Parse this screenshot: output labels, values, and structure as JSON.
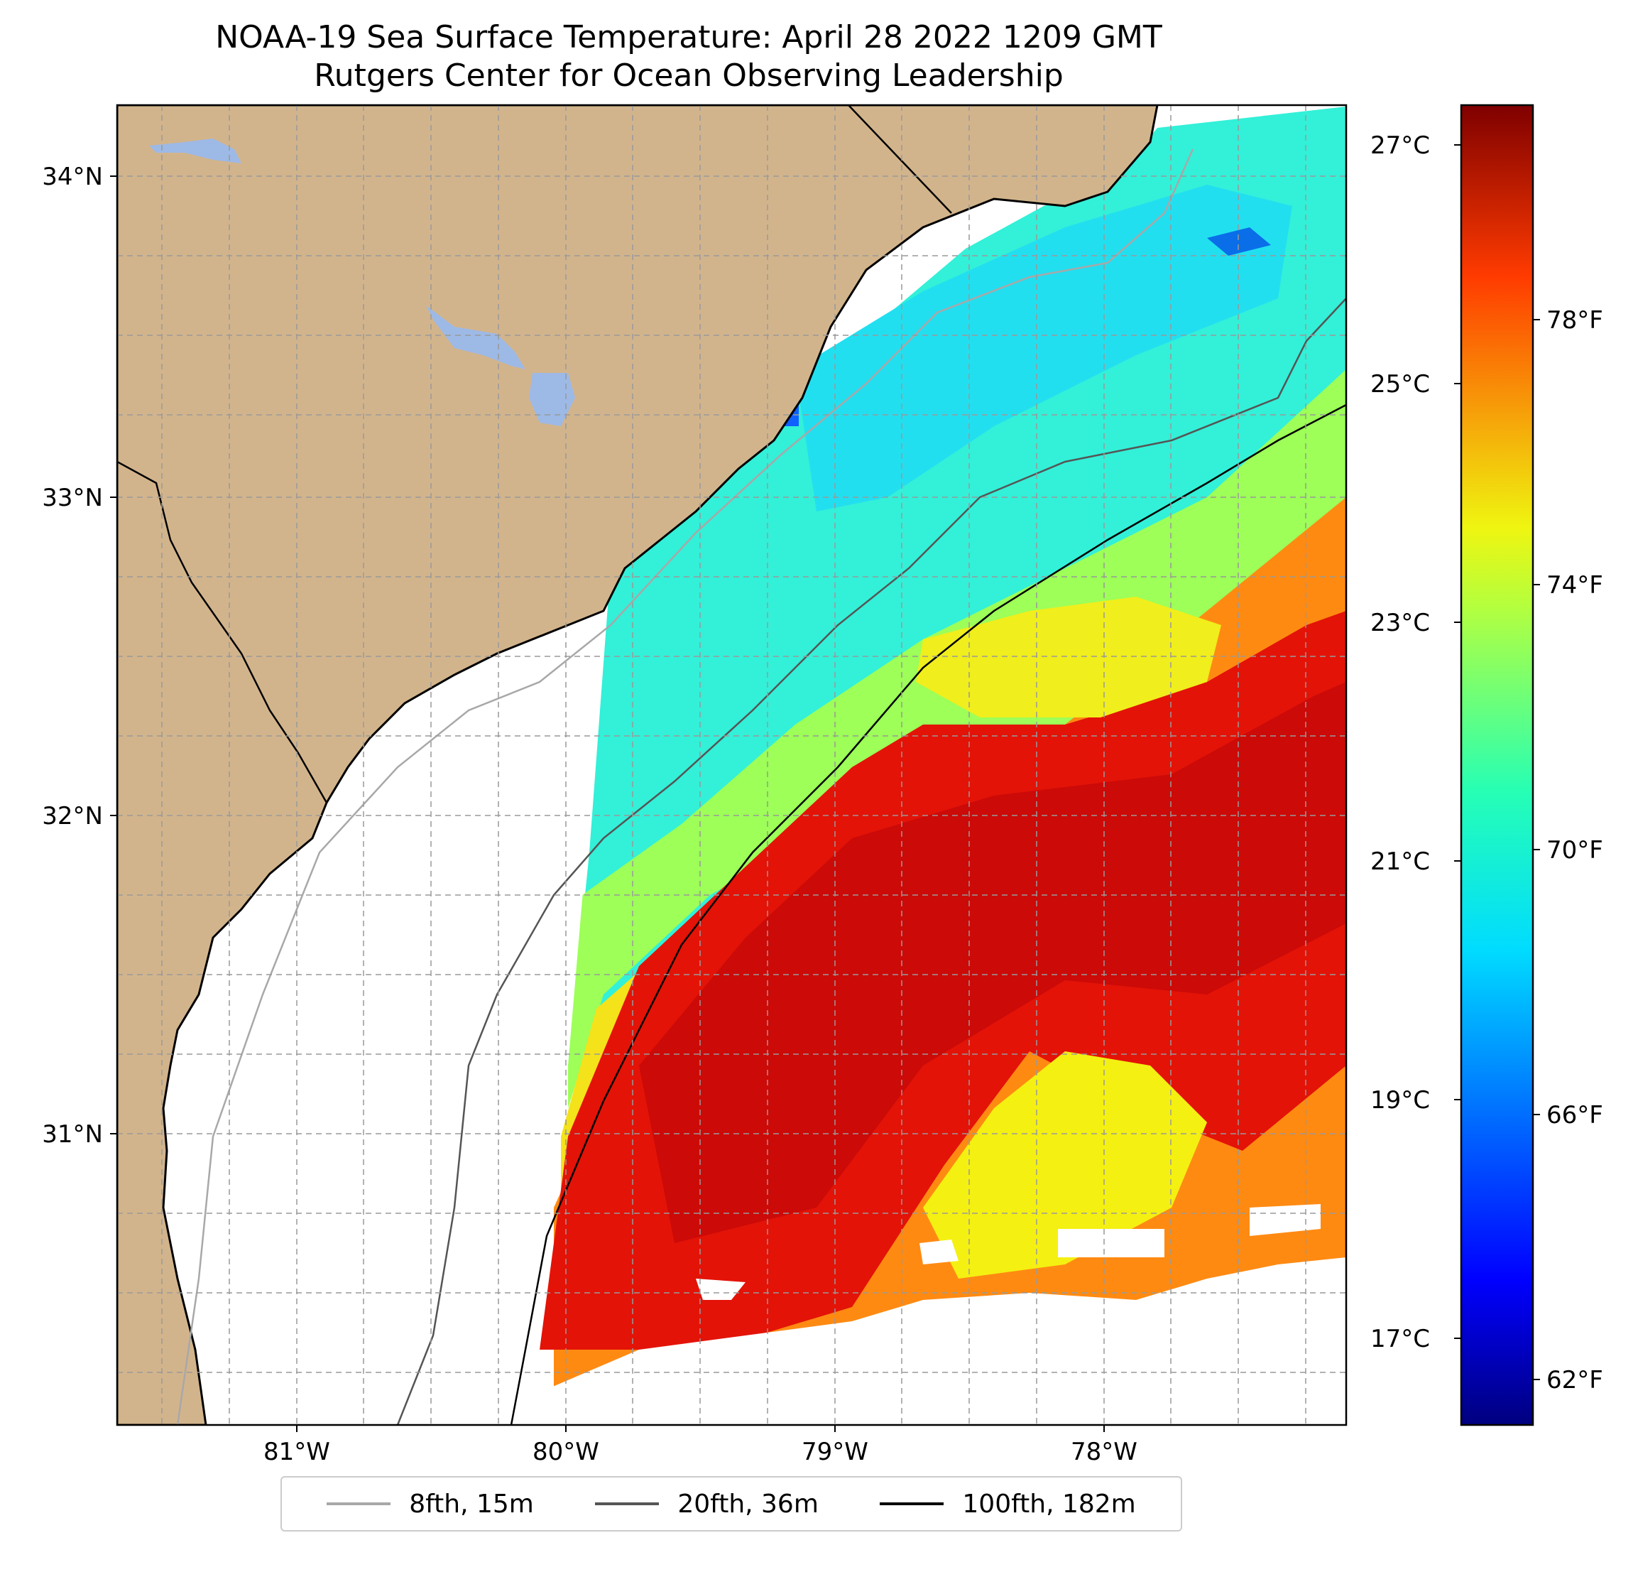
{
  "title": {
    "line1": "NOAA-19 Sea Surface Temperature: April 28 2022 1209 GMT",
    "line2": "Rutgers Center for Ocean Observing Leadership"
  },
  "map": {
    "lon_range": [
      -81.67,
      -77.13
    ],
    "lat_range": [
      30.25,
      34.22
    ],
    "lon_ticks": [
      "81°W",
      "80°W",
      "79°W",
      "78°W"
    ],
    "lat_ticks": [
      "34°N",
      "33°N",
      "32°N",
      "31°N"
    ],
    "land_color": "#D2B48C",
    "water_body_color": "#9DB9E6",
    "gridlines": true
  },
  "colorbar": {
    "colormap": "jet",
    "celsius_ticks": [
      "27°C",
      "25°C",
      "23°C",
      "21°C",
      "19°C",
      "17°C"
    ],
    "fahrenheit_ticks": [
      "78°F",
      "74°F",
      "70°F",
      "66°F",
      "62°F"
    ],
    "range_celsius": [
      16.4,
      27.7
    ]
  },
  "legend": {
    "items": [
      {
        "label": "8fth, 15m",
        "color": "#a8a8a8"
      },
      {
        "label": "20fth, 36m",
        "color": "#555555"
      },
      {
        "label": "100fth, 182m",
        "color": "#000000"
      }
    ]
  }
}
